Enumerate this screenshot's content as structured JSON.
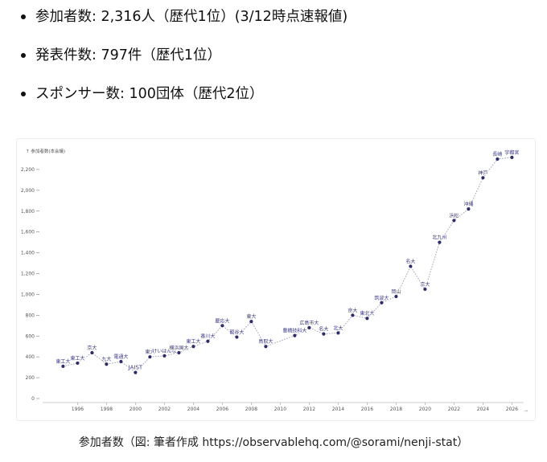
{
  "bullets": [
    {
      "text": "参加者数: 2,316人（歴代1位）(3/12時点速報値)"
    },
    {
      "text": "発表件数: 797件（歴代1位）"
    },
    {
      "text": "スポンサー数: 100団体（歴代2位）"
    }
  ],
  "caption": "参加者数（図: 筆者作成 https://observablehq.com/@sorami/nenji-stat）",
  "chart_data": {
    "type": "scatter",
    "title": "",
    "ylabel": "↑ 参加者数(本会議)",
    "xlabel": "",
    "xlim": [
      1993.7,
      2026.7
    ],
    "ylim": [
      0,
      2400
    ],
    "x_ticks": [
      1996,
      1998,
      2000,
      2002,
      2004,
      2006,
      2008,
      2010,
      2012,
      2014,
      2016,
      2018,
      2020,
      2022,
      2024,
      2026
    ],
    "y_ticks": [
      0,
      200,
      400,
      600,
      800,
      1000,
      1200,
      1400,
      1600,
      1800,
      2000,
      2200
    ],
    "y_tick_labels": [
      "0",
      "200",
      "400",
      "600",
      "800",
      "1,000",
      "1,200",
      "1,400",
      "1,600",
      "1,800",
      "2,000",
      "2,200"
    ],
    "grid": false,
    "connect_points": "dotted",
    "point_color": "#2d2b6b",
    "line_color": "#9a9ab0",
    "label_color": "#3a3880",
    "points": [
      {
        "x": 1995,
        "y": 310,
        "label": "東工大"
      },
      {
        "x": 1996,
        "y": 340,
        "label": "東工大"
      },
      {
        "x": 1997,
        "y": 440,
        "label": "京大"
      },
      {
        "x": 1998,
        "y": 330,
        "label": "九大"
      },
      {
        "x": 1999,
        "y": 355,
        "label": "電通大"
      },
      {
        "x": 2000,
        "y": 250,
        "label": "JAIST"
      },
      {
        "x": 2001,
        "y": 400,
        "label": "東大"
      },
      {
        "x": 2002,
        "y": 410,
        "label": "けいはんな"
      },
      {
        "x": 2003,
        "y": 440,
        "label": "横浜国大"
      },
      {
        "x": 2004,
        "y": 500,
        "label": "東工大"
      },
      {
        "x": 2005,
        "y": 550,
        "label": "香川大"
      },
      {
        "x": 2006,
        "y": 700,
        "label": "慶応大"
      },
      {
        "x": 2007,
        "y": 590,
        "label": "龍谷大"
      },
      {
        "x": 2008,
        "y": 740,
        "label": "東大"
      },
      {
        "x": 2009,
        "y": 500,
        "label": "鳥取大"
      },
      {
        "x": 2011,
        "y": 605,
        "label": "豊橋技科大"
      },
      {
        "x": 2012,
        "y": 680,
        "label": "広島市大"
      },
      {
        "x": 2013,
        "y": 620,
        "label": "名大"
      },
      {
        "x": 2014,
        "y": 630,
        "label": "北大"
      },
      {
        "x": 2015,
        "y": 800,
        "label": "京大"
      },
      {
        "x": 2016,
        "y": 770,
        "label": "東北大"
      },
      {
        "x": 2017,
        "y": 920,
        "label": "筑波大"
      },
      {
        "x": 2018,
        "y": 980,
        "label": "岡山"
      },
      {
        "x": 2019,
        "y": 1270,
        "label": "名大"
      },
      {
        "x": 2020,
        "y": 1050,
        "label": "京大"
      },
      {
        "x": 2021,
        "y": 1500,
        "label": "北九州"
      },
      {
        "x": 2022,
        "y": 1710,
        "label": "浜松"
      },
      {
        "x": 2023,
        "y": 1820,
        "label": "沖縄"
      },
      {
        "x": 2024,
        "y": 2120,
        "label": "神戸"
      },
      {
        "x": 2025,
        "y": 2300,
        "label": "長崎"
      },
      {
        "x": 2026,
        "y": 2316,
        "label": "宇都宮"
      }
    ]
  }
}
